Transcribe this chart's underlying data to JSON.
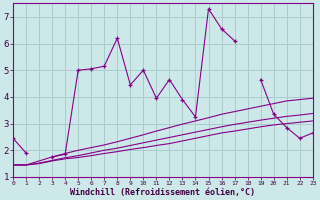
{
  "xlabel": "Windchill (Refroidissement éolien,°C)",
  "background_color": "#cce8e8",
  "grid_color": "#aacccc",
  "line_color": "#880088",
  "x_data": [
    0,
    1,
    2,
    3,
    4,
    5,
    6,
    7,
    8,
    9,
    10,
    11,
    12,
    13,
    14,
    15,
    16,
    17,
    18,
    19,
    20,
    21,
    22,
    23
  ],
  "y_main": [
    2.45,
    1.9,
    null,
    1.75,
    1.85,
    5.0,
    5.05,
    5.15,
    6.2,
    4.45,
    5.0,
    3.95,
    4.65,
    3.9,
    3.25,
    7.3,
    6.55,
    6.1,
    null,
    4.65,
    3.35,
    2.85,
    2.45,
    2.65
  ],
  "y_line1": [
    1.45,
    1.45,
    1.5,
    1.6,
    1.68,
    1.73,
    1.8,
    1.88,
    1.95,
    2.03,
    2.1,
    2.18,
    2.25,
    2.35,
    2.45,
    2.55,
    2.65,
    2.72,
    2.8,
    2.88,
    2.95,
    3.0,
    3.05,
    3.1
  ],
  "y_line2": [
    1.45,
    1.45,
    1.52,
    1.62,
    1.72,
    1.8,
    1.9,
    2.0,
    2.08,
    2.18,
    2.28,
    2.38,
    2.48,
    2.58,
    2.68,
    2.78,
    2.88,
    2.97,
    3.05,
    3.13,
    3.2,
    3.27,
    3.32,
    3.38
  ],
  "y_line3": [
    1.45,
    1.45,
    1.6,
    1.75,
    1.88,
    2.0,
    2.1,
    2.2,
    2.32,
    2.45,
    2.58,
    2.72,
    2.85,
    2.98,
    3.1,
    3.22,
    3.35,
    3.45,
    3.55,
    3.65,
    3.75,
    3.85,
    3.9,
    3.95
  ],
  "xlim": [
    0,
    23
  ],
  "ylim": [
    1.0,
    7.5
  ],
  "yticks": [
    1,
    2,
    3,
    4,
    5,
    6,
    7
  ]
}
